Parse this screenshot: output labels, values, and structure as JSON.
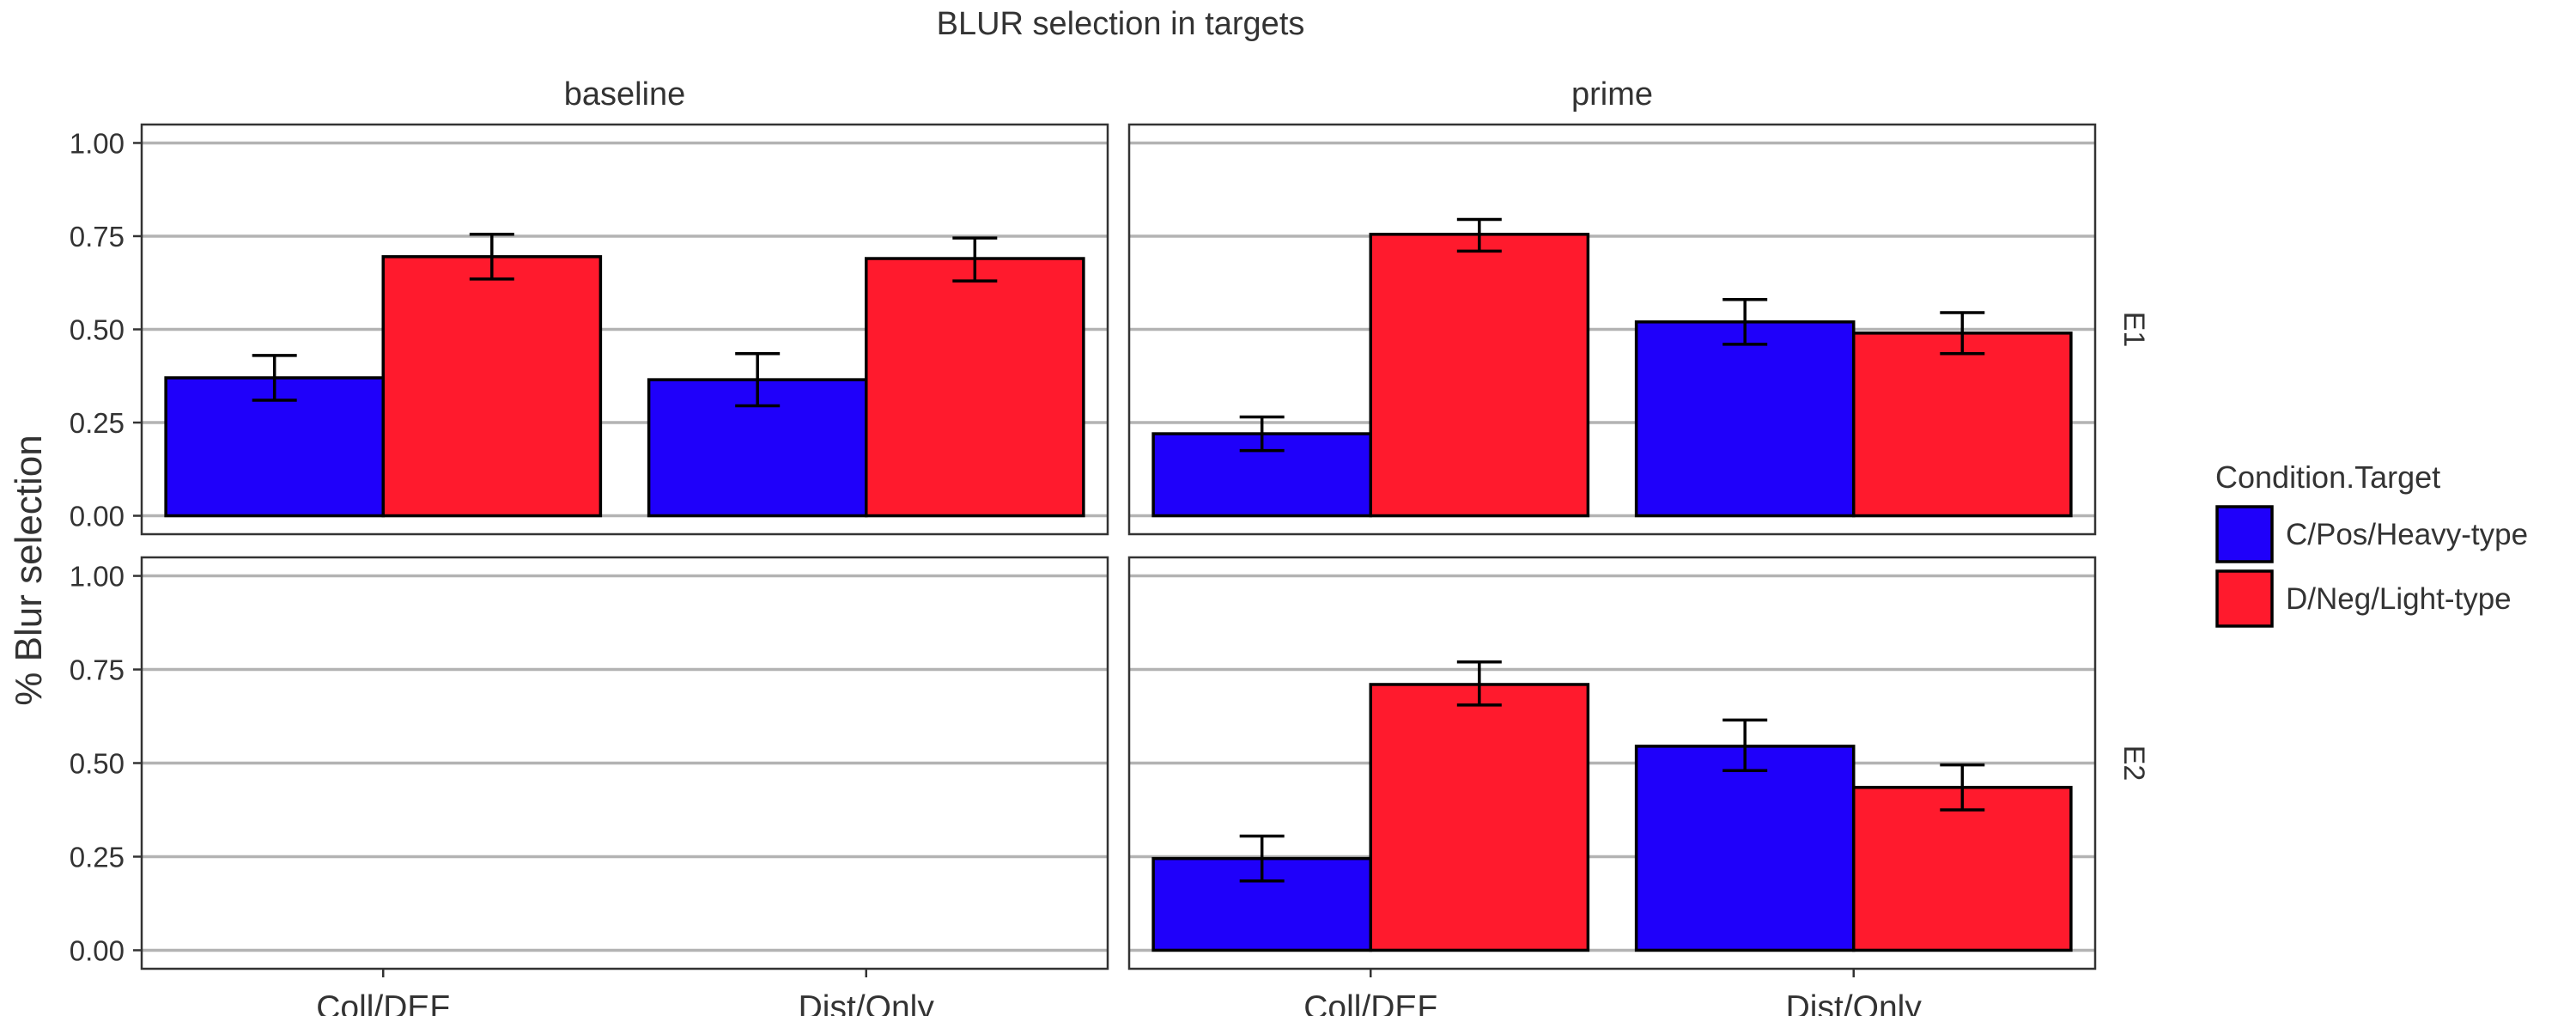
{
  "chart_data": {
    "type": "bar",
    "title": "BLUR selection in targets",
    "ylabel": "% Blur selection",
    "xlabel": "",
    "categories": [
      "Coll/DEF",
      "Dist/Only"
    ],
    "ylim": [
      0,
      1
    ],
    "yticks": [
      "0.00",
      "0.25",
      "0.50",
      "0.75",
      "1.00"
    ],
    "ytick_values": [
      0,
      0.25,
      0.5,
      0.75,
      1.0
    ],
    "grid": "horizontal-major",
    "facet_columns": [
      "baseline",
      "prime"
    ],
    "facet_rows": [
      "E1",
      "E2"
    ],
    "legend": {
      "title": "Condition.Target",
      "position": "right",
      "entries": [
        {
          "name": "C/Pos/Heavy-type",
          "color": "#1f00fa"
        },
        {
          "name": "D/Neg/Light-type",
          "color": "#ff1a2d"
        }
      ]
    },
    "panels": [
      {
        "column": "baseline",
        "row": "E1",
        "series": [
          {
            "name": "C/Pos/Heavy-type",
            "values": [
              0.37,
              0.365
            ],
            "err_low": [
              0.31,
              0.295
            ],
            "err_high": [
              0.43,
              0.435
            ]
          },
          {
            "name": "D/Neg/Light-type",
            "values": [
              0.695,
              0.69
            ],
            "err_low": [
              0.635,
              0.63
            ],
            "err_high": [
              0.755,
              0.745
            ]
          }
        ]
      },
      {
        "column": "prime",
        "row": "E1",
        "series": [
          {
            "name": "C/Pos/Heavy-type",
            "values": [
              0.22,
              0.52
            ],
            "err_low": [
              0.175,
              0.46
            ],
            "err_high": [
              0.265,
              0.58
            ]
          },
          {
            "name": "D/Neg/Light-type",
            "values": [
              0.755,
              0.49
            ],
            "err_low": [
              0.71,
              0.435
            ],
            "err_high": [
              0.795,
              0.545
            ]
          }
        ]
      },
      {
        "column": "baseline",
        "row": "E2",
        "series": []
      },
      {
        "column": "prime",
        "row": "E2",
        "series": [
          {
            "name": "C/Pos/Heavy-type",
            "values": [
              0.245,
              0.545
            ],
            "err_low": [
              0.185,
              0.48
            ],
            "err_high": [
              0.305,
              0.615
            ]
          },
          {
            "name": "D/Neg/Light-type",
            "values": [
              0.71,
              0.435
            ],
            "err_low": [
              0.655,
              0.375
            ],
            "err_high": [
              0.77,
              0.495
            ]
          }
        ]
      }
    ]
  }
}
